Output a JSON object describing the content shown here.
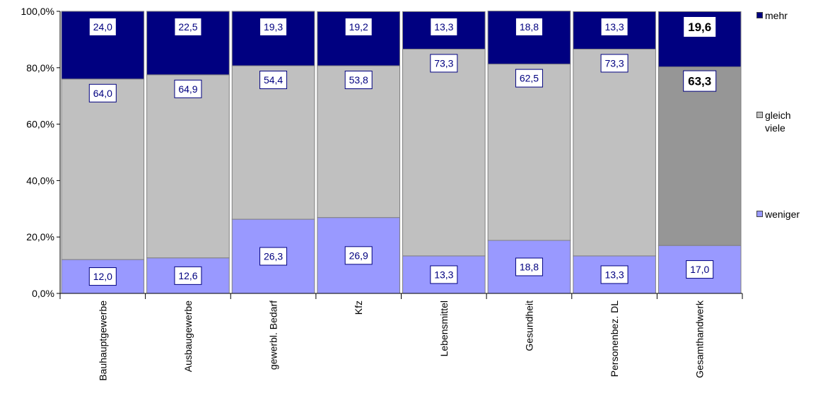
{
  "chart_data": {
    "type": "bar",
    "stacked": true,
    "percent_stacked": true,
    "categories": [
      "Bauhauptgewerbe",
      "Ausbaugewerbe",
      "gewerbl. Bedarf",
      "Kfz",
      "Lebensmittel",
      "Gesundheit",
      "Personenbez. DL",
      "Gesamthandwerk"
    ],
    "series": [
      {
        "name": "weniger",
        "color": "#9999ff",
        "values": [
          12.0,
          12.6,
          26.3,
          26.9,
          13.3,
          18.8,
          13.3,
          17.0
        ],
        "labels": [
          "12,0",
          "12,6",
          "26,3",
          "26,9",
          "13,3",
          "18,8",
          "13,3",
          "17,0"
        ]
      },
      {
        "name": "gleich viele",
        "color": "#c0c0c0",
        "values": [
          64.0,
          64.9,
          54.4,
          53.8,
          73.3,
          62.5,
          73.3,
          63.3
        ],
        "labels": [
          "64,0",
          "64,9",
          "54,4",
          "53,8",
          "73,3",
          "62,5",
          "73,3",
          "63,3"
        ]
      },
      {
        "name": "mehr",
        "color": "#000080",
        "values": [
          24.0,
          22.5,
          19.3,
          19.2,
          13.3,
          18.8,
          13.3,
          19.6
        ],
        "labels": [
          "24,0",
          "22,5",
          "19,3",
          "19,2",
          "13,3",
          "18,8",
          "13,3",
          "19,6"
        ]
      }
    ],
    "highlight": {
      "category": "Gesamthandwerk",
      "gleich_viele_color": "#969696"
    },
    "yticks": [
      "0,0%",
      "20,0%",
      "40,0%",
      "60,0%",
      "80,0%",
      "100,0%"
    ],
    "ylim": [
      0,
      100
    ],
    "legend_position": "right",
    "grid": false
  },
  "legend": {
    "items": [
      {
        "label": "mehr",
        "color": "#000080"
      },
      {
        "label": "gleich\nviele",
        "color": "#c0c0c0"
      },
      {
        "label": "weniger",
        "color": "#9999ff"
      }
    ]
  }
}
